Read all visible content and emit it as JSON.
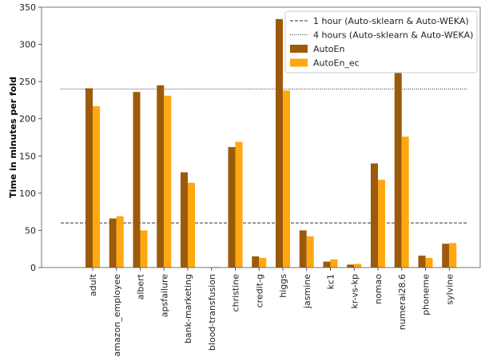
{
  "chart_data": {
    "type": "bar",
    "title": "",
    "xlabel": "",
    "ylabel": "Time in minutes per fold",
    "ylim": [
      0,
      350
    ],
    "yticks": [
      0,
      50,
      100,
      150,
      200,
      250,
      300,
      350
    ],
    "grid": false,
    "legend_position": "top-right",
    "categories": [
      "adult",
      "amazon_employee",
      "albert",
      "apsfailure",
      "bank-marketing",
      "blood-transfusion",
      "christine",
      "credit-g",
      "higgs",
      "jasmine",
      "kc1",
      "kr-vs-kp",
      "nomao",
      "numerai28.6",
      "phoneme",
      "sylvine"
    ],
    "series": [
      {
        "name": "AutoEn",
        "color": "#9c5b0b",
        "values": [
          241,
          66,
          236,
          245,
          128,
          0.5,
          162,
          15,
          334,
          50,
          8,
          4,
          140,
          262,
          16,
          32
        ]
      },
      {
        "name": "AutoEn_ec",
        "color": "#ffa811",
        "values": [
          217,
          69,
          50,
          231,
          114,
          0.8,
          169,
          13,
          238,
          42,
          11,
          5,
          118,
          176,
          13,
          33
        ]
      }
    ],
    "reference_lines": [
      {
        "name": "1 hour (Auto-sklearn & Auto-WEKA)",
        "value": 60,
        "style": "dashed"
      },
      {
        "name": "4 hours (Auto-sklearn & Auto-WEKA)",
        "value": 240,
        "style": "dotted"
      }
    ]
  }
}
